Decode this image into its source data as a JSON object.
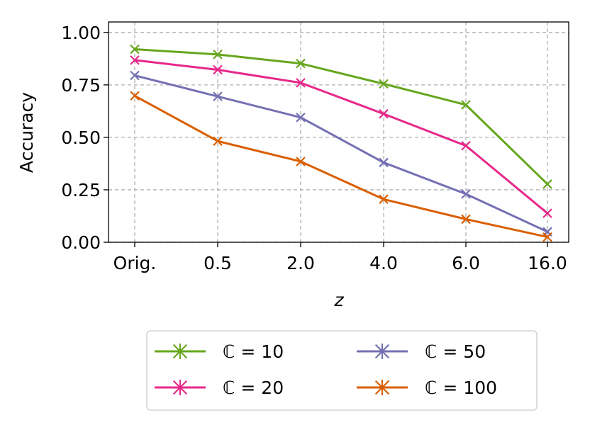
{
  "chart_data": {
    "type": "line",
    "title": "",
    "xlabel": "z",
    "ylabel": "Accuracy",
    "categories": [
      "Orig.",
      "0.5",
      "2.0",
      "4.0",
      "6.0",
      "16.0"
    ],
    "ylim": [
      0,
      1.05
    ],
    "yticks": [
      "0.00",
      "0.25",
      "0.50",
      "0.75",
      "1.00"
    ],
    "ytick_values": [
      0,
      0.25,
      0.5,
      0.75,
      1.0
    ],
    "grid": true,
    "legend_position": "bottom-center",
    "series": [
      {
        "name": "ℂ = 10",
        "color": "#66a61e",
        "values": [
          0.92,
          0.895,
          0.852,
          0.755,
          0.655,
          0.277
        ]
      },
      {
        "name": "ℂ = 20",
        "color": "#e7298a",
        "values": [
          0.868,
          0.822,
          0.76,
          0.612,
          0.46,
          0.138
        ]
      },
      {
        "name": "ℂ = 50",
        "color": "#7570b3",
        "values": [
          0.795,
          0.695,
          0.595,
          0.38,
          0.23,
          0.05
        ]
      },
      {
        "name": "ℂ = 100",
        "color": "#d95f02",
        "values": [
          0.698,
          0.482,
          0.385,
          0.205,
          0.11,
          0.025
        ]
      }
    ]
  }
}
